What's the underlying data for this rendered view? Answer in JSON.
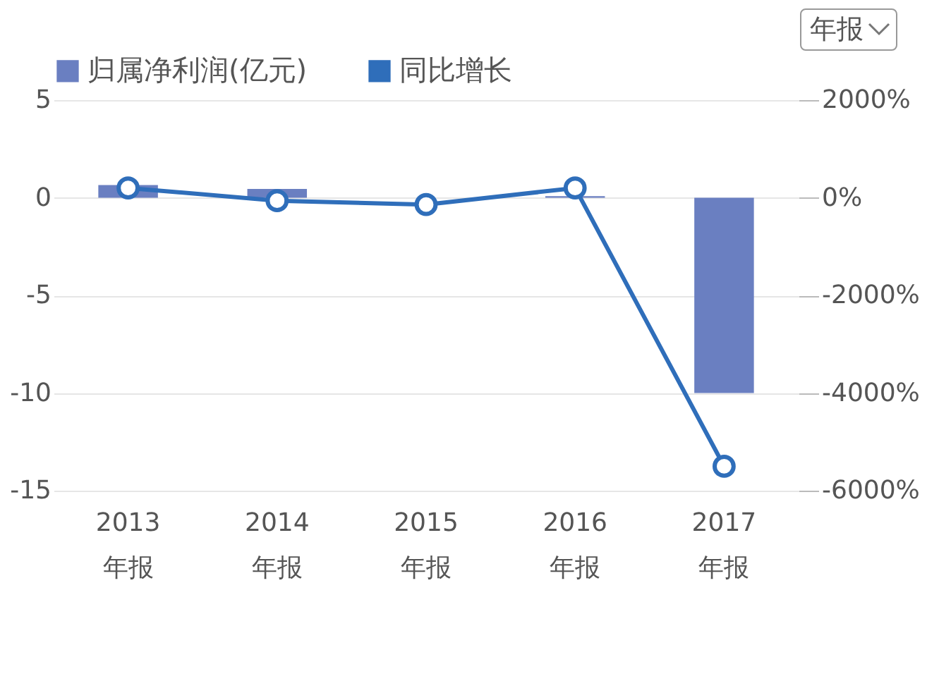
{
  "chart_data": {
    "type": "bar",
    "categories": [
      "2013\n年报",
      "2014\n年报",
      "2015\n年报",
      "2016\n年报",
      "2017\n年报"
    ],
    "series": [
      {
        "name": "归属净利润(亿元)",
        "color": "#6a7fc1",
        "values": [
          0.65,
          0.45,
          0,
          0.08,
          -10
        ]
      },
      {
        "name": "同比增长",
        "type": "line",
        "axis": "y2",
        "color": "#2f6eba",
        "values": [
          200,
          -60,
          -140,
          200,
          -5500
        ]
      }
    ],
    "ylim": [
      -15,
      5
    ],
    "yticks": [
      -15,
      -10,
      -5,
      0,
      5
    ],
    "y2lim": [
      -6000,
      2000
    ],
    "y2ticks": [
      {
        "value": -6000,
        "label": "-6000%"
      },
      {
        "value": -4000,
        "label": "-4000%"
      },
      {
        "value": -2000,
        "label": "-2000%"
      },
      {
        "value": 0,
        "label": "0%"
      },
      {
        "value": 2000,
        "label": "2000%"
      }
    ],
    "grid": "y",
    "legend": "top left",
    "marker": "circle",
    "line_style": "solid",
    "annotations": [
      "年报"
    ]
  }
}
